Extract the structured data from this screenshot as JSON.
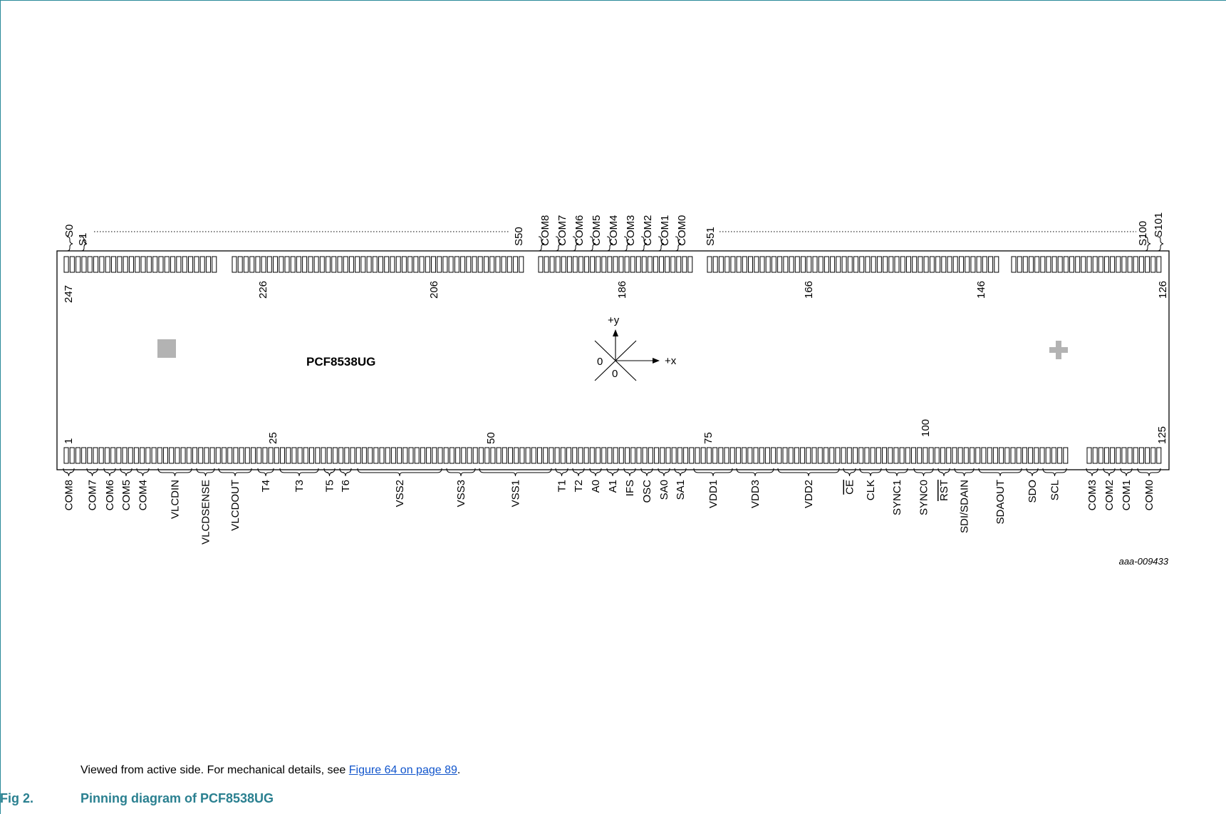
{
  "chip_name": "PCF8538UG",
  "figure_code": "aaa-009433",
  "axes": {
    "x": "+x",
    "y": "+y",
    "origin_x": "0",
    "origin_y": "0"
  },
  "top_labels": {
    "s0": "S0",
    "s1": "S1",
    "s50": "S50",
    "s51": "S51",
    "s100": "S100",
    "s101": "S101",
    "com_top": [
      "COM8",
      "COM7",
      "COM6",
      "COM5",
      "COM4",
      "COM3",
      "COM2",
      "COM1",
      "COM0"
    ]
  },
  "pin_numbers_top": [
    "247",
    "226",
    "206",
    "186",
    "166",
    "146",
    "126"
  ],
  "pin_numbers_bottom": [
    "1",
    "25",
    "50",
    "75",
    "100",
    "125"
  ],
  "bottom_labels": [
    "COM8",
    "COM7",
    "COM6",
    "COM5",
    "COM4",
    "VLCDIN",
    "VLCDSENSE",
    "VLCDOUT",
    "T4",
    "T3",
    "T5",
    "T6",
    "VSS2",
    "VSS3",
    "VSS1",
    "T1",
    "T2",
    "A0",
    "A1",
    "IFS",
    "OSC",
    "SA0",
    "SA1",
    "VDD1",
    "VDD3",
    "VDD2",
    "CE",
    "CLK",
    "SYNC1",
    "SYNC0",
    "RST",
    "SDI/SDAIN",
    "SDAOUT",
    "SDO",
    "SCL",
    "COM3",
    "COM2",
    "COM1",
    "COM0"
  ],
  "note": {
    "text": "Viewed from active side. For mechanical details, see ",
    "link": "Figure 64 on page 89",
    "tail": "."
  },
  "caption": {
    "number": "Fig 2.",
    "title": "Pinning diagram of PCF8538UG"
  },
  "colors": {
    "accent": "#2a8090",
    "link": "#1155cc",
    "marker": "#b3b3b3"
  }
}
